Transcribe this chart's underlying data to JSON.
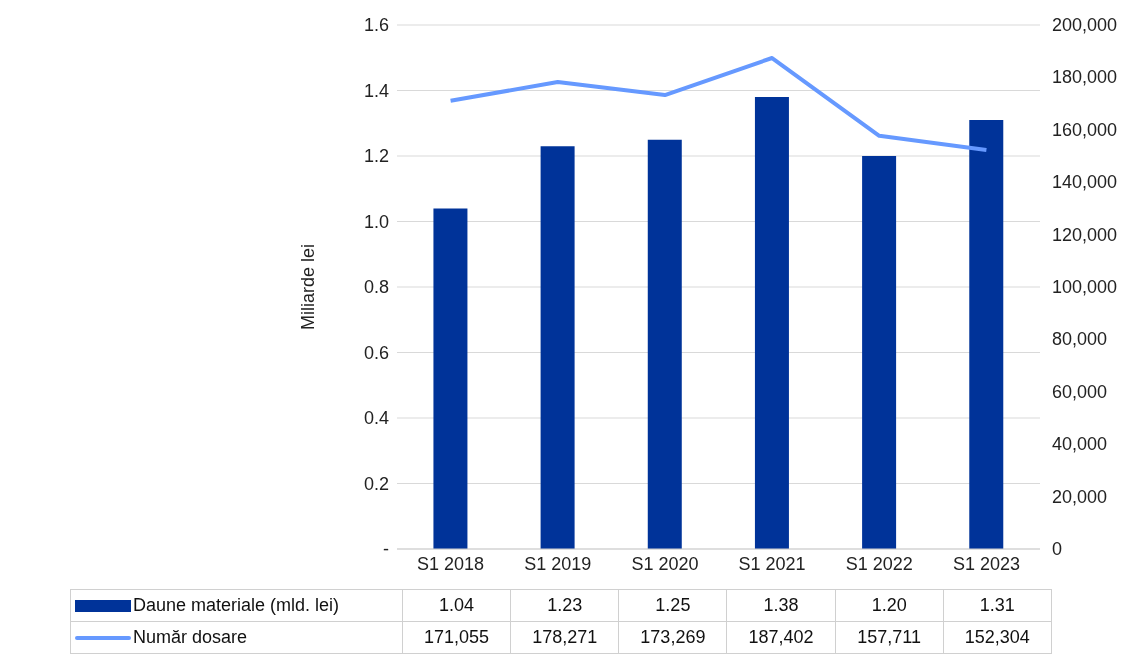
{
  "chart_data": {
    "type": "bar",
    "ylabel": "Miliarde lei",
    "categories": [
      "S1 2018",
      "S1 2019",
      "S1 2020",
      "S1 2021",
      "S1 2022",
      "S1 2023"
    ],
    "series": [
      {
        "name": "Daune materiale (mld. lei)",
        "color": "#003399",
        "values": [
          1.04,
          1.23,
          1.25,
          1.38,
          1.2,
          1.31
        ],
        "value_labels": [
          "1.04",
          "1.23",
          "1.25",
          "1.38",
          "1.20",
          "1.31"
        ]
      },
      {
        "name": "Număr dosare",
        "type": "line",
        "axis": "y2",
        "color": "#6699ff",
        "marker": "none",
        "values": [
          171055,
          178271,
          173269,
          187402,
          157711,
          152304
        ],
        "value_labels": [
          "171,055",
          "178,271",
          "173,269",
          "187,402",
          "157,711",
          "152,304"
        ]
      }
    ],
    "ylim": [
      0,
      1.6
    ],
    "yticks": [
      {
        "value": 0,
        "label": "-"
      },
      {
        "value": 0.2,
        "label": "0.2"
      },
      {
        "value": 0.4,
        "label": "0.4"
      },
      {
        "value": 0.6,
        "label": "0.6"
      },
      {
        "value": 0.8,
        "label": "0.8"
      },
      {
        "value": 1,
        "label": "1.0"
      },
      {
        "value": 1.2,
        "label": "1.2"
      },
      {
        "value": 1.4,
        "label": "1.4"
      },
      {
        "value": 1.6,
        "label": "1.6"
      }
    ],
    "y2lim": [
      0,
      200000
    ],
    "y2ticks": [
      0,
      {
        "value": 20000,
        "label": "20,000"
      },
      {
        "value": 40000,
        "label": "40,000"
      },
      {
        "value": 60000,
        "label": "60,000"
      },
      {
        "value": 80000,
        "label": "80,000"
      },
      {
        "value": 100000,
        "label": "100,000"
      },
      {
        "value": 120000,
        "label": "120,000"
      },
      {
        "value": 140000,
        "label": "140,000"
      },
      {
        "value": 160000,
        "label": "160,000"
      },
      {
        "value": 180000,
        "label": "180,000"
      },
      {
        "value": 200000,
        "label": "200,000"
      }
    ],
    "grid": "y",
    "legend": "bottom"
  }
}
